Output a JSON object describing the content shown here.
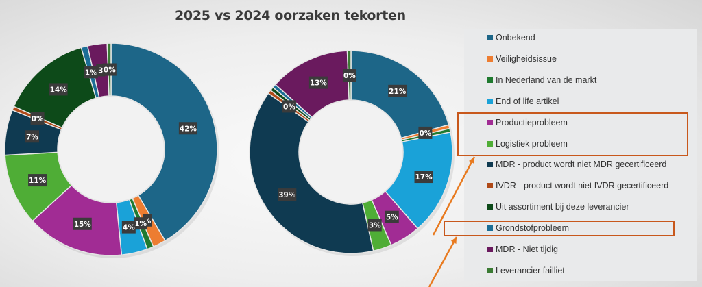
{
  "chart_data": [
    {
      "type": "donut",
      "title": "2025 vs 2024 oorzaken tekorten",
      "categories": [
        "Onbekend",
        "Veiligheidsissue",
        "In Nederland van de markt",
        "End of life artikel",
        "Productieprobleem",
        "Logistiek probleem",
        "MDR - product wordt niet MDR gecertificeerd",
        "IVDR - product wordt niet IVDR gecertificeerd",
        "Uit assortiment bij deze leverancier",
        "Grondstofprobleem",
        "MDR - Niet tijdig",
        "Leverancier failliet"
      ],
      "values": [
        42,
        2,
        1,
        4,
        15,
        11,
        7,
        0,
        14,
        1,
        3,
        0
      ],
      "labels": [
        "42%",
        "%",
        "1%",
        "4%",
        "15%",
        "11%",
        "7%",
        "0%",
        "14%",
        "1%",
        "3",
        "0%"
      ]
    },
    {
      "type": "donut",
      "categories": [
        "Onbekend",
        "Veiligheidsissue",
        "In Nederland van de markt",
        "End of life artikel",
        "Productieprobleem",
        "Logistiek probleem",
        "MDR - product wordt niet MDR gecertificeerd",
        "IVDR - product wordt niet IVDR gecertificeerd",
        "Uit assortiment bij deze leverancier",
        "Grondstofprobleem",
        "MDR - Niet tijdig",
        "Leverancier failliet"
      ],
      "values": [
        21,
        0,
        0,
        17,
        5,
        3,
        39,
        0,
        0,
        0,
        13,
        0
      ],
      "labels": [
        "21%",
        "0%",
        "",
        "17%",
        "5%",
        "3%",
        "39%",
        "0%",
        "",
        "",
        "13%",
        "0%"
      ]
    }
  ],
  "title": "2025 vs 2024 oorzaken tekorten",
  "legend": {
    "position": "right",
    "items": [
      {
        "label": "Onbekend",
        "color": "#1d6688"
      },
      {
        "label": "Veiligheidsissue",
        "color": "#ed7d31"
      },
      {
        "label": "In Nederland van de markt",
        "color": "#1f7a2f"
      },
      {
        "label": "End of life artikel",
        "color": "#1aa2d8"
      },
      {
        "label": "Productieprobleem",
        "color": "#a12c94"
      },
      {
        "label": "Logistiek probleem",
        "color": "#4fad36"
      },
      {
        "label": "MDR - product wordt niet MDR gecertificeerd",
        "color": "#0f3a51"
      },
      {
        "label": "IVDR - product wordt niet IVDR gecertificeerd",
        "color": "#b04a18"
      },
      {
        "label": "Uit assortiment bij deze leverancier",
        "color": "#0d4a19"
      },
      {
        "label": "Grondstofprobleem",
        "color": "#1b6e96"
      },
      {
        "label": "MDR - Niet tijdig",
        "color": "#6a1a5e"
      },
      {
        "label": "Leverancier failliet",
        "color": "#3b7b34"
      }
    ]
  },
  "highlight_color": "#c8581c",
  "highlighted_items": [
    "Productieprobleem",
    "Logistiek probleem",
    "Grondstofprobleem"
  ]
}
